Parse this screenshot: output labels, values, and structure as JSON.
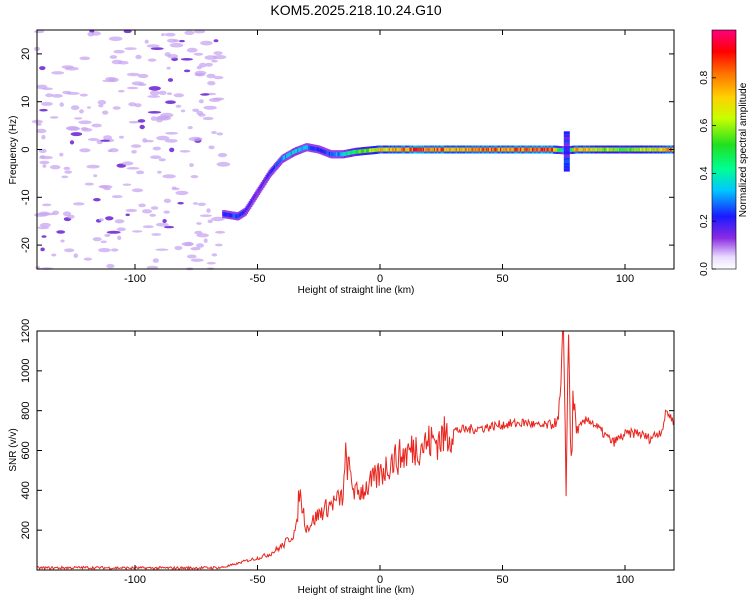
{
  "title": "KOM5.2025.218.10.24.G10",
  "colors": {
    "line": "#e8261f",
    "axis": "#000000",
    "noise": "#c8a6f0",
    "noise_dark": "#6a1fd0"
  },
  "chart_data": [
    {
      "type": "heatmap",
      "title": "KOM5.2025.218.10.24.G10",
      "xlabel": "Height of straight line (km)",
      "ylabel": "Frequency (Hz)",
      "xlim": [
        -140,
        120
      ],
      "ylim": [
        -25,
        25
      ],
      "xticks": [
        -100,
        -50,
        0,
        50,
        100
      ],
      "yticks": [
        -20,
        -10,
        0,
        10,
        20
      ],
      "colorbar": {
        "label": "Normalized spectral amplitude",
        "range": [
          0,
          1
        ],
        "ticks": [
          "0.0",
          "0.2",
          "0.4",
          "0.6",
          "0.8"
        ],
        "tick_values": [
          0.0,
          0.2,
          0.4,
          0.6,
          0.8
        ],
        "colormap": "rainbow (white, violet, blue, cyan, green, yellow, orange, red, magenta)"
      },
      "ridge": {
        "x": [
          -64,
          -58,
          -55,
          -50,
          -45,
          -40,
          -35,
          -30,
          -25,
          -20,
          -15,
          -10,
          0,
          10,
          20,
          30,
          50,
          70,
          76,
          80,
          100,
          120
        ],
        "frequency": [
          -13.5,
          -14,
          -13,
          -9,
          -5,
          -2,
          -0.5,
          0.5,
          0,
          -1,
          -1,
          -0.5,
          0,
          0,
          0,
          0,
          0,
          0,
          -0.2,
          0,
          0,
          0
        ],
        "amplitude": [
          0.2,
          0.25,
          0.2,
          0.15,
          0.2,
          0.3,
          0.35,
          0.3,
          0.2,
          0.25,
          0.35,
          0.5,
          0.7,
          0.8,
          0.85,
          0.75,
          0.8,
          0.85,
          0.2,
          0.75,
          0.5,
          0.8
        ]
      },
      "noise_region": {
        "x_range": [
          -140,
          -63
        ],
        "frequency_range": [
          -25,
          25
        ],
        "amplitude": 0.05
      }
    },
    {
      "type": "line",
      "title": "",
      "xlabel": "Height of straight line (km)",
      "ylabel": "SNR (v/v)",
      "xlim": [
        -140,
        120
      ],
      "ylim": [
        0,
        1200
      ],
      "xticks": [
        -100,
        -50,
        0,
        50,
        100
      ],
      "yticks": [
        200,
        400,
        600,
        800,
        1000,
        1200
      ],
      "series": [
        {
          "name": "SNR",
          "x": [
            -140,
            -120,
            -100,
            -80,
            -65,
            -60,
            -55,
            -50,
            -45,
            -40,
            -36,
            -34,
            -33,
            -30,
            -25,
            -20,
            -15,
            -14,
            -10,
            -5,
            0,
            5,
            10,
            15,
            20,
            25,
            30,
            40,
            50,
            60,
            65,
            70,
            73,
            74,
            75,
            76,
            77,
            78,
            79,
            80,
            82,
            85,
            90,
            95,
            100,
            105,
            110,
            115,
            117,
            120
          ],
          "y": [
            10,
            12,
            10,
            10,
            12,
            25,
            45,
            60,
            80,
            120,
            170,
            210,
            400,
            210,
            280,
            330,
            370,
            560,
            380,
            420,
            480,
            550,
            580,
            620,
            640,
            660,
            700,
            710,
            730,
            740,
            720,
            730,
            750,
            900,
            1200,
            400,
            1200,
            550,
            850,
            700,
            720,
            760,
            700,
            640,
            680,
            690,
            660,
            700,
            800,
            740
          ]
        }
      ]
    }
  ]
}
